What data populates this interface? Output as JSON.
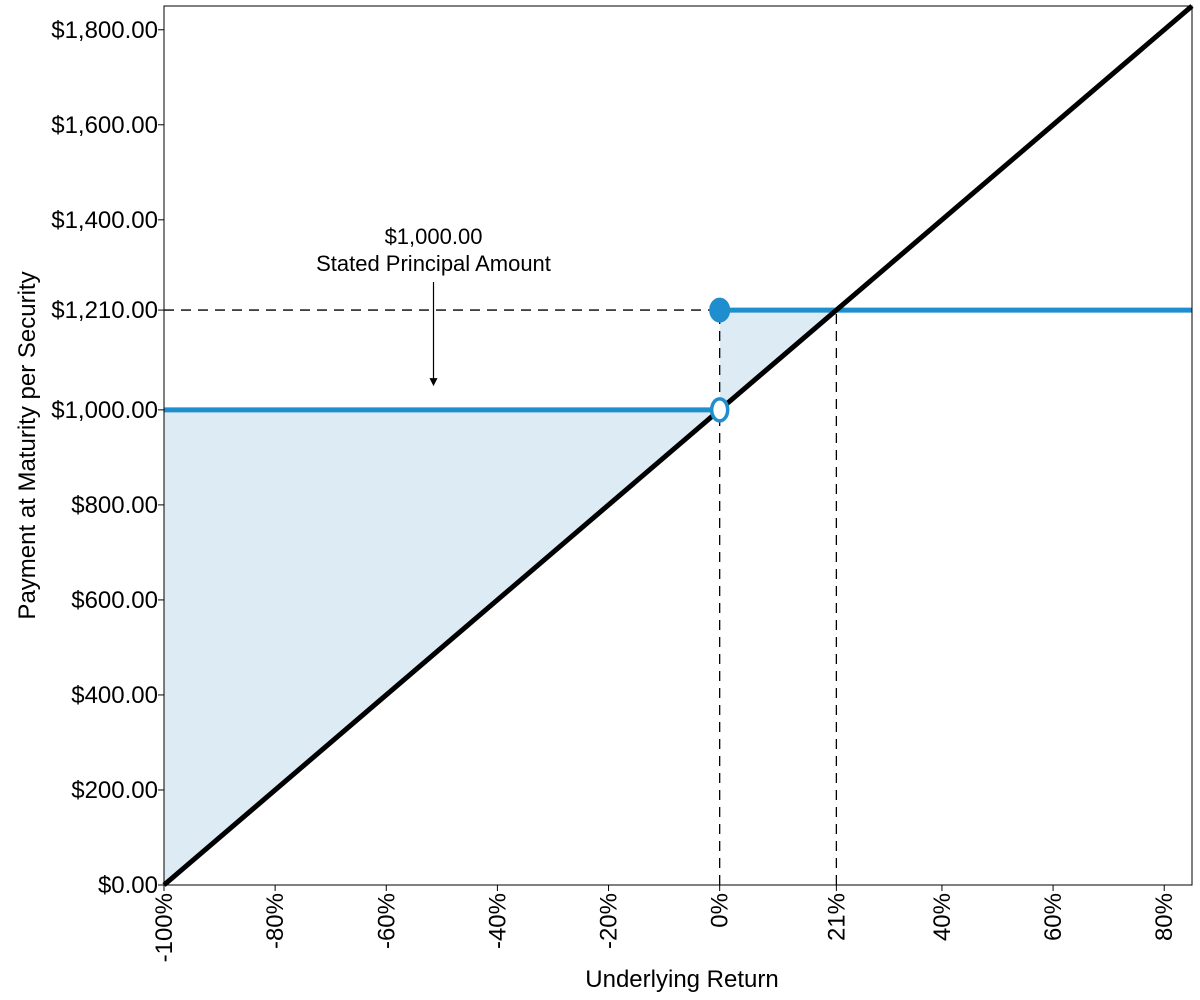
{
  "chart_data": {
    "type": "line",
    "title": "",
    "xlabel": "Underlying Return",
    "ylabel": "Payment at Maturity per Security",
    "xlim": [
      -100,
      85
    ],
    "ylim": [
      0,
      1850
    ],
    "grid": false,
    "x_ticks": [
      {
        "value": -100,
        "label": "-100%"
      },
      {
        "value": -80,
        "label": "-80%"
      },
      {
        "value": -60,
        "label": "-60%"
      },
      {
        "value": -40,
        "label": "-40%"
      },
      {
        "value": -20,
        "label": "-20%"
      },
      {
        "value": 0,
        "label": "0%"
      },
      {
        "value": 21,
        "label": "21%"
      },
      {
        "value": 40,
        "label": "40%"
      },
      {
        "value": 60,
        "label": "60%"
      },
      {
        "value": 80,
        "label": "80%"
      }
    ],
    "y_ticks": [
      {
        "value": 0,
        "label": "$0.00"
      },
      {
        "value": 200,
        "label": "$200.00"
      },
      {
        "value": 400,
        "label": "$400.00"
      },
      {
        "value": 600,
        "label": "$600.00"
      },
      {
        "value": 800,
        "label": "$800.00"
      },
      {
        "value": 1000,
        "label": "$1,000.00"
      },
      {
        "value": 1210,
        "label": "$1,210.00"
      },
      {
        "value": 1400,
        "label": "$1,400.00"
      },
      {
        "value": 1600,
        "label": "$1,600.00"
      },
      {
        "value": 1800,
        "label": "$1,800.00"
      }
    ],
    "series": [
      {
        "role": "underlying",
        "color": "#000000",
        "x": [
          -100,
          85
        ],
        "y": [
          0,
          1850
        ]
      },
      {
        "role": "security-payoff",
        "color": "#1f8ece",
        "segments": [
          {
            "x": [
              -100,
              0
            ],
            "y": [
              1000,
              1000
            ]
          },
          {
            "x": [
              0,
              85
            ],
            "y": [
              1210,
              1210
            ]
          }
        ],
        "markers": [
          {
            "x": 0,
            "y": 1210,
            "style": "filled"
          },
          {
            "x": 0,
            "y": 1000,
            "style": "open"
          }
        ]
      }
    ],
    "shaded_region": {
      "color": "#ddebf5",
      "between": [
        "security-payoff",
        "underlying"
      ],
      "x_range": [
        -100,
        21
      ]
    },
    "reference_lines": [
      {
        "orientation": "horizontal",
        "y": 1210,
        "x_range": [
          -100,
          0
        ],
        "style": "dashed"
      },
      {
        "orientation": "vertical",
        "x": 0,
        "y_range": [
          0,
          1210
        ],
        "style": "dashed"
      },
      {
        "orientation": "vertical",
        "x": 21,
        "y_range": [
          0,
          1210
        ],
        "style": "dashed"
      }
    ],
    "annotation": {
      "lines": [
        "$1,000.00",
        "Stated Principal Amount"
      ],
      "arrow_target": {
        "x": -51.5,
        "y": 1050
      }
    }
  }
}
